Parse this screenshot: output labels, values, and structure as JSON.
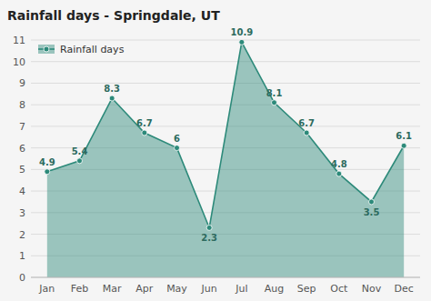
{
  "chart_data": {
    "type": "area",
    "title": "Rainfall days - Springdale, UT",
    "categories": [
      "Jan",
      "Feb",
      "Mar",
      "Apr",
      "May",
      "Jun",
      "Jul",
      "Aug",
      "Sep",
      "Oct",
      "Nov",
      "Dec"
    ],
    "series": [
      {
        "name": "Rainfall days",
        "color": "#2d8a7a",
        "marker": "circle",
        "values": [
          4.9,
          5.4,
          8.3,
          6.7,
          6.0,
          2.3,
          10.9,
          8.1,
          6.7,
          4.8,
          3.5,
          6.1
        ]
      }
    ],
    "ylim": [
      0,
      11
    ],
    "yticks": [
      0,
      1,
      2,
      3,
      4,
      5,
      6,
      7,
      8,
      9,
      10,
      11
    ],
    "grid": "y",
    "legend": "upper left",
    "data_labels": true
  }
}
